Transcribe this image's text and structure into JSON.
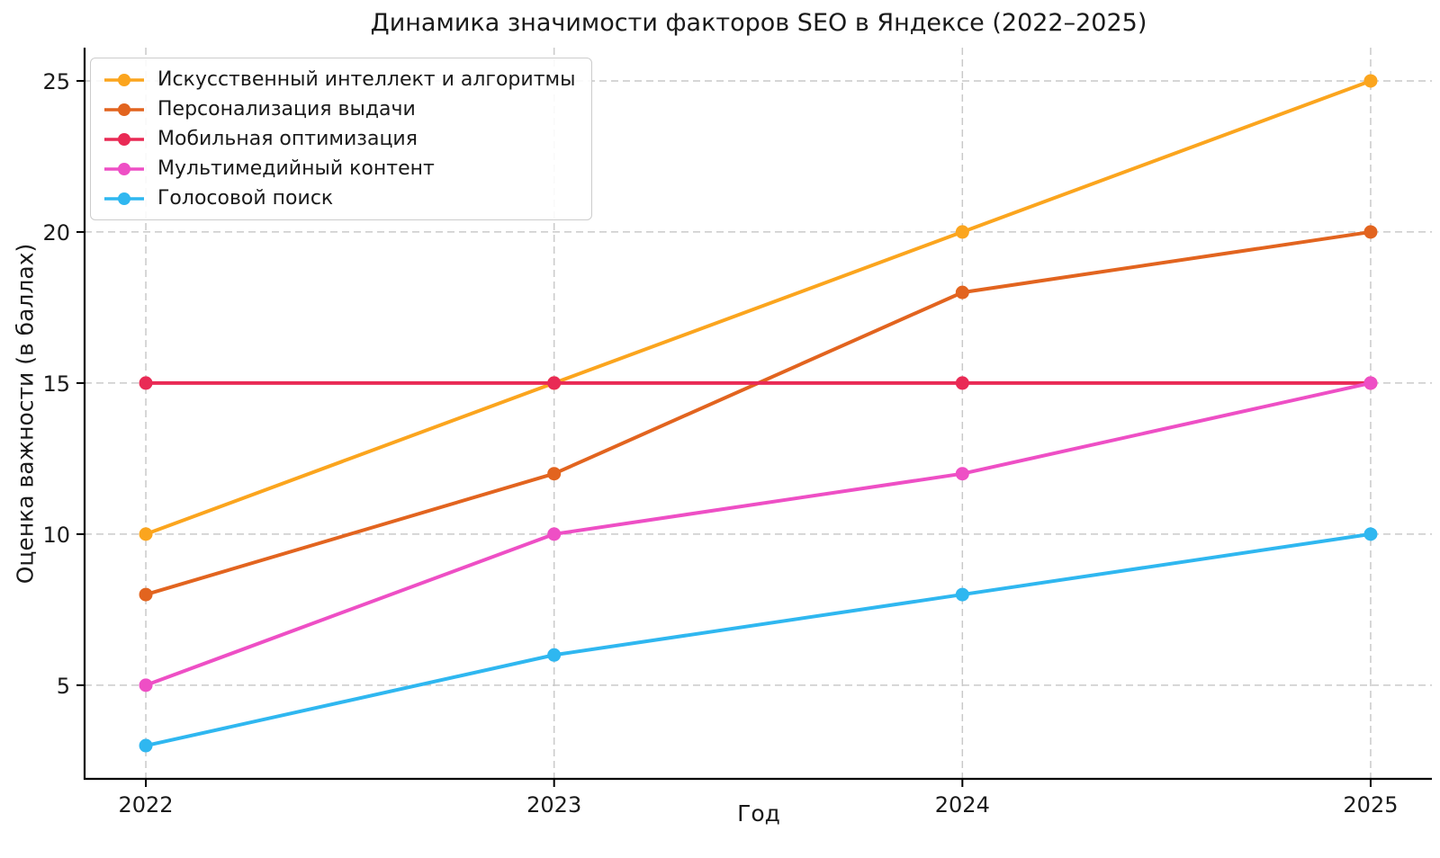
{
  "figure": {
    "background": "#ffffff",
    "text_color": "#1a1a1a",
    "spine_color": "#000000",
    "grid_color": "#c9c9c9",
    "legend_border_color": "#cccccc"
  },
  "chart_data": {
    "type": "line",
    "title": "Динамика значимости факторов SEO в Яндексе (2022–2025)",
    "xlabel": "Год",
    "ylabel": "Оценка важности (в баллах)",
    "x": [
      2022,
      2023,
      2024,
      2025
    ],
    "xtick_labels": [
      "2022",
      "2023",
      "2024",
      "2025"
    ],
    "yticks": [
      5,
      10,
      15,
      20,
      25
    ],
    "xlim": [
      2021.85,
      2025.15
    ],
    "ylim": [
      1.9,
      26.1
    ],
    "grid": true,
    "grid_style": "dashed",
    "legend_position": "upper-left",
    "series": [
      {
        "name": "Искусственный интеллект и алгоритмы",
        "color": "#FBA51E",
        "values": [
          10,
          15,
          20,
          25
        ]
      },
      {
        "name": "Персонализация выдачи",
        "color": "#E2641F",
        "values": [
          8,
          12,
          18,
          20
        ]
      },
      {
        "name": "Мобильная оптимизация",
        "color": "#E92A55",
        "values": [
          15,
          15,
          15,
          15
        ]
      },
      {
        "name": "Мультимедийный контент",
        "color": "#EE4FC5",
        "values": [
          5,
          10,
          12,
          15
        ]
      },
      {
        "name": "Голосовой поиск",
        "color": "#2FB7F0",
        "values": [
          3,
          6,
          8,
          10
        ]
      }
    ]
  }
}
